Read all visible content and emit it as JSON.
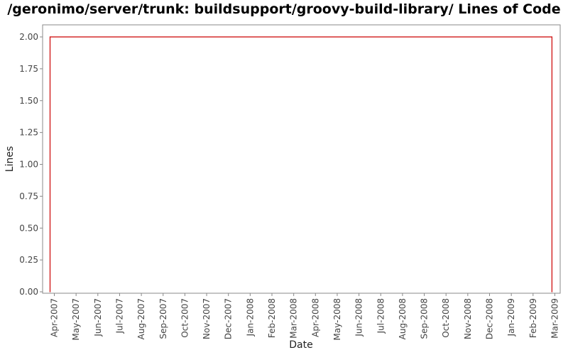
{
  "chart_data": {
    "type": "line",
    "title": "/geronimo/server/trunk: buildsupport/groovy-build-library/ Lines of Code",
    "xlabel": "Date",
    "ylabel": "Lines",
    "x_ticks": [
      "Apr-2007",
      "May-2007",
      "Jun-2007",
      "Jul-2007",
      "Aug-2007",
      "Sep-2007",
      "Oct-2007",
      "Nov-2007",
      "Dec-2007",
      "Jan-2008",
      "Feb-2008",
      "Mar-2008",
      "Apr-2008",
      "May-2008",
      "Jun-2008",
      "Jul-2008",
      "Aug-2008",
      "Sep-2008",
      "Oct-2008",
      "Nov-2008",
      "Dec-2008",
      "Jan-2009",
      "Feb-2009",
      "Mar-2009"
    ],
    "y_ticks": [
      "0.00",
      "0.25",
      "0.50",
      "0.75",
      "1.00",
      "1.25",
      "1.50",
      "1.75",
      "2.00"
    ],
    "ylim": [
      0,
      2.1
    ],
    "grid": false,
    "series": [
      {
        "color": "#cc0000",
        "points": [
          {
            "x": "2007-03-26",
            "y": 0
          },
          {
            "x": "2007-03-26",
            "y": 2
          },
          {
            "x": "2009-02-25",
            "y": 2
          },
          {
            "x": "2009-02-25",
            "y": 0
          }
        ]
      }
    ]
  }
}
